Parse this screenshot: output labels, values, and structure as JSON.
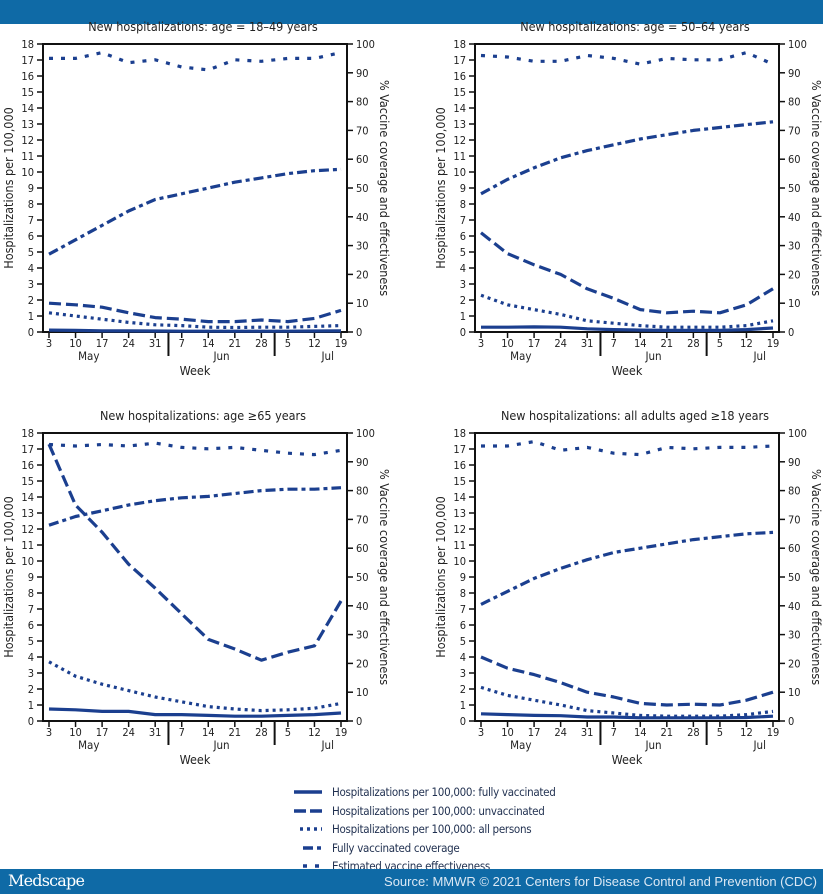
{
  "colors": {
    "line": "#1b3f8f",
    "bar": "#0f6aa6"
  },
  "footer": {
    "logo": "Medscape",
    "source": "Source: MMWR © 2021 Centers for Disease Control and Prevention (CDC)"
  },
  "legend": [
    {
      "label": "Hospitalizations per 100,000: fully vaccinated",
      "style": "solid"
    },
    {
      "label": "Hospitalizations per 100,000: unvaccinated",
      "style": "dashed"
    },
    {
      "label": "Hospitalizations per 100,000: all persons",
      "style": "dotted"
    },
    {
      "label": "Fully vaccinated coverage",
      "style": "dash-dot"
    },
    {
      "label": "Estimated vaccine effectiveness",
      "style": "short-dash"
    }
  ],
  "axes": {
    "x_ticks": [
      "3",
      "10",
      "17",
      "24",
      "31",
      "7",
      "14",
      "21",
      "28",
      "5",
      "12",
      "19"
    ],
    "months": [
      "May",
      "Jun",
      "Jul"
    ],
    "xlabel": "Week",
    "ylabel_left": "Hospitalizations per 100,000",
    "ylabel_right": "% Vaccine coverage and effectiveness",
    "ylim_left": [
      0,
      18
    ],
    "ylim_right": [
      0,
      100
    ],
    "left_ticks": [
      0,
      1,
      2,
      3,
      4,
      5,
      6,
      7,
      8,
      9,
      10,
      11,
      12,
      13,
      14,
      15,
      16,
      17,
      18
    ],
    "right_ticks": [
      0,
      10,
      20,
      30,
      40,
      50,
      60,
      70,
      80,
      90,
      100
    ]
  },
  "chart_data": [
    {
      "type": "line",
      "title": "New hospitalizations: age = 18–49 years",
      "series": [
        {
          "name": "Hospitalizations per 100,000: fully vaccinated",
          "axis": "left",
          "values": [
            0.12,
            0.1,
            0.07,
            0.07,
            0.06,
            0.05,
            0.05,
            0.05,
            0.05,
            0.05,
            0.06,
            0.07
          ]
        },
        {
          "name": "Hospitalizations per 100,000: unvaccinated",
          "axis": "left",
          "values": [
            1.8,
            1.7,
            1.55,
            1.2,
            0.9,
            0.8,
            0.65,
            0.65,
            0.75,
            0.65,
            0.85,
            1.35
          ]
        },
        {
          "name": "Hospitalizations per 100,000: all persons",
          "axis": "left",
          "values": [
            1.2,
            1.0,
            0.8,
            0.6,
            0.45,
            0.4,
            0.3,
            0.28,
            0.3,
            0.3,
            0.35,
            0.4
          ]
        },
        {
          "name": "Fully vaccinated coverage",
          "axis": "right",
          "values": [
            27,
            32,
            37,
            42,
            46,
            48,
            50,
            52,
            53.5,
            55,
            56,
            56.5
          ]
        },
        {
          "name": "Estimated vaccine effectiveness",
          "axis": "right",
          "values": [
            95,
            95,
            97,
            93.5,
            94.5,
            92,
            91,
            94.5,
            94,
            95,
            95,
            97
          ]
        }
      ]
    },
    {
      "type": "line",
      "title": "New hospitalizations: age = 50–64 years",
      "series": [
        {
          "name": "Hospitalizations per 100,000: fully vaccinated",
          "axis": "left",
          "values": [
            0.3,
            0.3,
            0.32,
            0.3,
            0.2,
            0.15,
            0.12,
            0.1,
            0.1,
            0.1,
            0.15,
            0.25
          ]
        },
        {
          "name": "Hospitalizations per 100,000: unvaccinated",
          "axis": "left",
          "values": [
            6.2,
            4.9,
            4.2,
            3.6,
            2.7,
            2.1,
            1.4,
            1.2,
            1.3,
            1.2,
            1.7,
            2.7
          ]
        },
        {
          "name": "Hospitalizations per 100,000: all persons",
          "axis": "left",
          "values": [
            2.3,
            1.7,
            1.4,
            1.1,
            0.7,
            0.55,
            0.4,
            0.3,
            0.3,
            0.3,
            0.4,
            0.7
          ]
        },
        {
          "name": "Fully vaccinated coverage",
          "axis": "right",
          "values": [
            48,
            53,
            57,
            60.5,
            63,
            65,
            67,
            68.5,
            70,
            71,
            72,
            73
          ]
        },
        {
          "name": "Estimated vaccine effectiveness",
          "axis": "right",
          "values": [
            96,
            95.5,
            94,
            94,
            96,
            95,
            93,
            95,
            94.5,
            94.5,
            97,
            93
          ]
        }
      ]
    },
    {
      "type": "line",
      "title": "New hospitalizations: age ≥65 years",
      "series": [
        {
          "name": "Hospitalizations per 100,000: fully vaccinated",
          "axis": "left",
          "values": [
            0.75,
            0.7,
            0.6,
            0.6,
            0.4,
            0.4,
            0.35,
            0.3,
            0.3,
            0.35,
            0.4,
            0.5
          ]
        },
        {
          "name": "Hospitalizations per 100,000: unvaccinated",
          "axis": "left",
          "values": [
            17.3,
            13.5,
            11.8,
            9.8,
            8.3,
            6.7,
            5.1,
            4.5,
            3.8,
            4.3,
            4.7,
            7.5
          ]
        },
        {
          "name": "Hospitalizations per 100,000: all persons",
          "axis": "left",
          "values": [
            3.7,
            2.8,
            2.3,
            1.9,
            1.5,
            1.2,
            0.9,
            0.75,
            0.65,
            0.7,
            0.8,
            1.1
          ]
        },
        {
          "name": "Fully vaccinated coverage",
          "axis": "right",
          "values": [
            68,
            71,
            73,
            75,
            76.5,
            77.5,
            78,
            79,
            80,
            80.5,
            80.5,
            81
          ]
        },
        {
          "name": "Estimated vaccine effectiveness",
          "axis": "right",
          "values": [
            96,
            95.5,
            96,
            95.5,
            96.5,
            95,
            94.5,
            95,
            94,
            93,
            92.5,
            94
          ]
        }
      ]
    },
    {
      "type": "line",
      "title": "New hospitalizations: all adults aged ≥18 years",
      "series": [
        {
          "name": "Hospitalizations per 100,000: fully vaccinated",
          "axis": "left",
          "values": [
            0.45,
            0.4,
            0.35,
            0.33,
            0.25,
            0.25,
            0.2,
            0.2,
            0.2,
            0.2,
            0.22,
            0.3
          ]
        },
        {
          "name": "Hospitalizations per 100,000: unvaccinated",
          "axis": "left",
          "values": [
            4.0,
            3.3,
            2.9,
            2.4,
            1.8,
            1.5,
            1.1,
            1.0,
            1.05,
            1.0,
            1.3,
            1.8
          ]
        },
        {
          "name": "Hospitalizations per 100,000: all persons",
          "axis": "left",
          "values": [
            2.1,
            1.6,
            1.3,
            1.0,
            0.65,
            0.5,
            0.35,
            0.3,
            0.3,
            0.3,
            0.4,
            0.6
          ]
        },
        {
          "name": "Fully vaccinated coverage",
          "axis": "right",
          "values": [
            40.5,
            45,
            49.5,
            53,
            56,
            58.5,
            60,
            61.5,
            63,
            64,
            65,
            65.5
          ]
        },
        {
          "name": "Estimated vaccine effectiveness",
          "axis": "right",
          "values": [
            95.5,
            95.5,
            97,
            94,
            95,
            93,
            92.5,
            95,
            94.5,
            95,
            95,
            95.5
          ]
        }
      ]
    }
  ]
}
